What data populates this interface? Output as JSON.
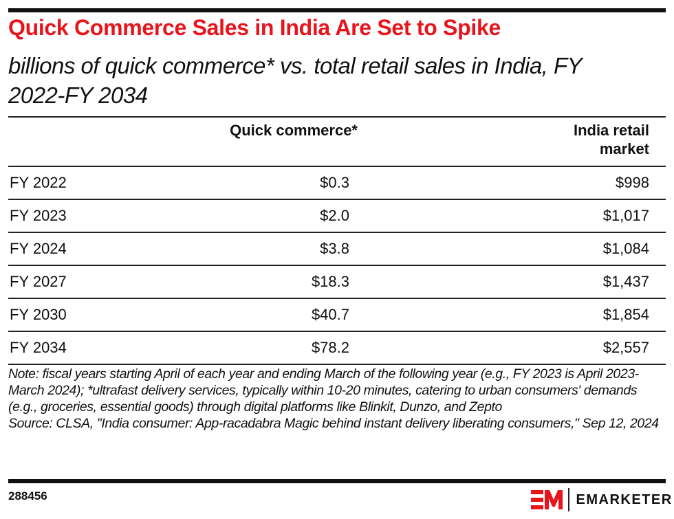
{
  "header": {
    "title": "Quick Commerce Sales in India Are Set to Spike",
    "subtitle": "billions of quick commerce* vs. total retail sales in India, FY 2022-FY 2034"
  },
  "table": {
    "columns": [
      "",
      "Quick commerce*",
      "India retail market"
    ],
    "rows": [
      {
        "label": "FY 2022",
        "quick_commerce": "$0.3",
        "retail": "$998"
      },
      {
        "label": "FY 2023",
        "quick_commerce": "$2.0",
        "retail": "$1,017"
      },
      {
        "label": "FY 2024",
        "quick_commerce": "$3.8",
        "retail": "$1,084"
      },
      {
        "label": "FY 2027",
        "quick_commerce": "$18.3",
        "retail": "$1,437"
      },
      {
        "label": "FY 2030",
        "quick_commerce": "$40.7",
        "retail": "$1,854"
      },
      {
        "label": "FY 2034",
        "quick_commerce": "$78.2",
        "retail": "$2,557"
      }
    ]
  },
  "notes": {
    "note": "Note: fiscal years starting April of each year and ending March of the following year (e.g., FY 2023 is April 2023-March 2024); *ultrafast delivery services, typically within 10-20 minutes, catering to urban consumers' demands (e.g., groceries, essential goods) through digital platforms like Blinkit, Dunzo, and Zepto",
    "source": "Source: CLSA, \"India consumer: App-racadabra Magic behind instant delivery liberating consumers,\" Sep 12, 2024"
  },
  "footer": {
    "chart_id": "288456",
    "brand": "EMARKETER",
    "logo_icon": "emarketer-em-logo-icon"
  },
  "colors": {
    "title": "#e8141c",
    "text": "#111111",
    "rule": "#222222",
    "brand_red": "#e8141c"
  },
  "chart_data": {
    "type": "table",
    "title": "Quick Commerce Sales in India Are Set to Spike",
    "subtitle": "billions of quick commerce* vs. total retail sales in India, FY 2022-FY 2034",
    "categories": [
      "FY 2022",
      "FY 2023",
      "FY 2024",
      "FY 2027",
      "FY 2030",
      "FY 2034"
    ],
    "series": [
      {
        "name": "Quick commerce*",
        "unit": "billions USD",
        "values": [
          0.3,
          2.0,
          3.8,
          18.3,
          40.7,
          78.2
        ]
      },
      {
        "name": "India retail market",
        "unit": "billions USD",
        "values": [
          998,
          1017,
          1084,
          1437,
          1854,
          2557
        ]
      }
    ]
  }
}
